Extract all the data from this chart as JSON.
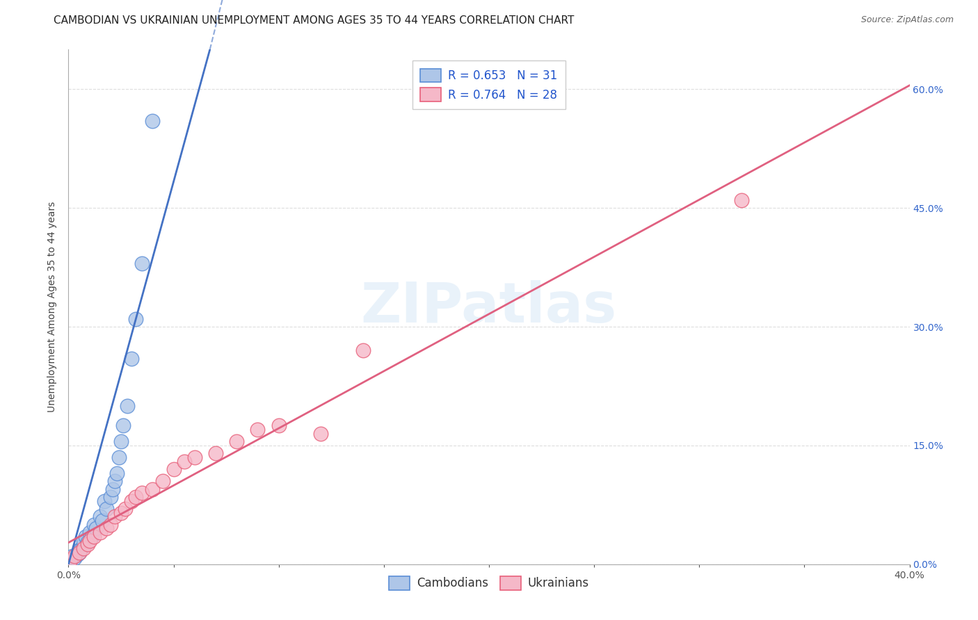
{
  "title": "CAMBODIAN VS UKRAINIAN UNEMPLOYMENT AMONG AGES 35 TO 44 YEARS CORRELATION CHART",
  "source": "Source: ZipAtlas.com",
  "ylabel": "Unemployment Among Ages 35 to 44 years",
  "watermark": "ZIPatlas",
  "xlim": [
    0,
    0.4
  ],
  "ylim": [
    0,
    0.65
  ],
  "xticks": [
    0.0,
    0.05,
    0.1,
    0.15,
    0.2,
    0.25,
    0.3,
    0.35,
    0.4
  ],
  "yticks": [
    0.0,
    0.15,
    0.3,
    0.45,
    0.6
  ],
  "xtick_labels_show": [
    "0.0%",
    "40.0%"
  ],
  "right_ytick_labels": [
    "0.0%",
    "15.0%",
    "30.0%",
    "45.0%",
    "60.0%"
  ],
  "cambodian_R": "0.653",
  "cambodian_N": "31",
  "ukrainian_R": "0.764",
  "ukrainian_N": "28",
  "cambodian_color": "#aec6e8",
  "ukrainian_color": "#f5b8c8",
  "cambodian_edge_color": "#5b8ed6",
  "ukrainian_edge_color": "#e8607a",
  "cambodian_line_color": "#4472c4",
  "ukrainian_line_color": "#e06080",
  "background_color": "#ffffff",
  "legend_text_color": "#2255cc",
  "cambodian_x": [
    0.001,
    0.002,
    0.003,
    0.004,
    0.005,
    0.005,
    0.006,
    0.007,
    0.007,
    0.008,
    0.009,
    0.01,
    0.011,
    0.012,
    0.013,
    0.015,
    0.016,
    0.017,
    0.018,
    0.02,
    0.021,
    0.022,
    0.023,
    0.024,
    0.025,
    0.026,
    0.028,
    0.03,
    0.032,
    0.035,
    0.04
  ],
  "cambodian_y": [
    0.005,
    0.01,
    0.008,
    0.012,
    0.015,
    0.018,
    0.02,
    0.025,
    0.03,
    0.035,
    0.028,
    0.04,
    0.035,
    0.05,
    0.045,
    0.06,
    0.055,
    0.08,
    0.07,
    0.085,
    0.095,
    0.105,
    0.115,
    0.135,
    0.155,
    0.175,
    0.2,
    0.26,
    0.31,
    0.38,
    0.56
  ],
  "ukrainian_x": [
    0.001,
    0.003,
    0.005,
    0.007,
    0.009,
    0.01,
    0.012,
    0.015,
    0.018,
    0.02,
    0.022,
    0.025,
    0.027,
    0.03,
    0.032,
    0.035,
    0.04,
    0.045,
    0.05,
    0.055,
    0.06,
    0.07,
    0.08,
    0.09,
    0.1,
    0.12,
    0.14,
    0.32
  ],
  "ukrainian_y": [
    0.005,
    0.01,
    0.015,
    0.02,
    0.025,
    0.03,
    0.035,
    0.04,
    0.045,
    0.05,
    0.06,
    0.065,
    0.07,
    0.08,
    0.085,
    0.09,
    0.095,
    0.105,
    0.12,
    0.13,
    0.135,
    0.14,
    0.155,
    0.17,
    0.175,
    0.165,
    0.27,
    0.46
  ],
  "title_fontsize": 11,
  "axis_fontsize": 10,
  "tick_fontsize": 10,
  "legend_fontsize": 12,
  "source_fontsize": 9
}
